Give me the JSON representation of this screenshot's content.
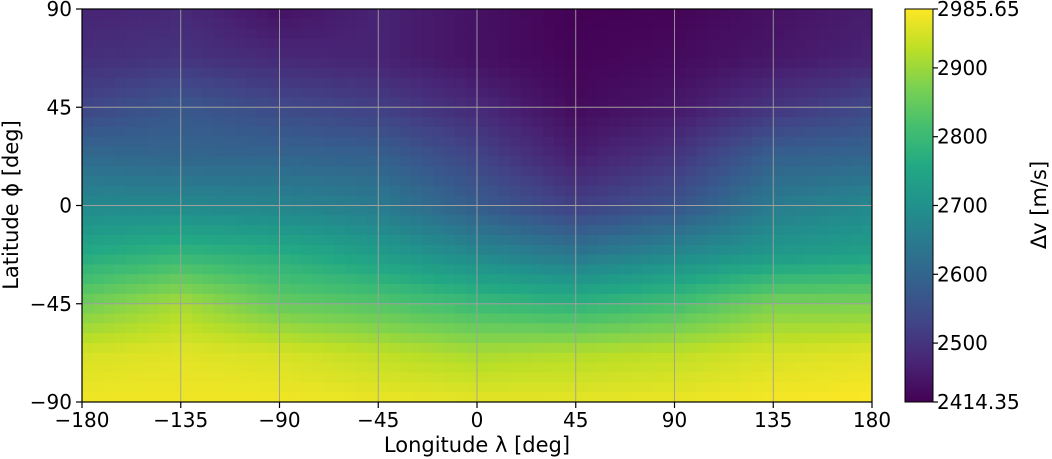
{
  "chart_data": {
    "type": "heatmap",
    "title": "",
    "xlabel": "Longitude λ [deg]",
    "ylabel": "Latitude ϕ [deg]",
    "colorbar_label": "Δv [m/s]",
    "xlim": [
      -180,
      180
    ],
    "ylim": [
      -90,
      90
    ],
    "xticks": [
      -180,
      -135,
      -90,
      -45,
      0,
      45,
      90,
      135,
      180
    ],
    "xtick_labels": [
      "−180",
      "−135",
      "−90",
      "−45",
      "0",
      "45",
      "90",
      "135",
      "180"
    ],
    "yticks": [
      -90,
      -45,
      0,
      45,
      90
    ],
    "ytick_labels": [
      "−90",
      "−45",
      "0",
      "45",
      "90"
    ],
    "grid": true,
    "colormap": "viridis",
    "vmin": 2414.35,
    "vmax": 2985.65,
    "colorbar_ticks": [
      2414.35,
      2500,
      2600,
      2700,
      2800,
      2900,
      2985.65
    ],
    "colorbar_tick_labels": [
      "2414.35",
      "2500",
      "2600",
      "2700",
      "2800",
      "2900",
      "2985.65"
    ],
    "x": [
      -180,
      -135,
      -90,
      -45,
      0,
      45,
      90,
      135,
      180
    ],
    "y": [
      90,
      67.5,
      45,
      22.5,
      0,
      -22.5,
      -45,
      -67.5,
      -90
    ],
    "z": [
      [
        2470,
        2480,
        2440,
        2470,
        2440,
        2415,
        2420,
        2440,
        2460
      ],
      [
        2490,
        2500,
        2480,
        2470,
        2440,
        2420,
        2430,
        2450,
        2470
      ],
      [
        2530,
        2570,
        2540,
        2520,
        2480,
        2430,
        2450,
        2500,
        2540
      ],
      [
        2610,
        2600,
        2600,
        2590,
        2530,
        2460,
        2500,
        2590,
        2600
      ],
      [
        2680,
        2680,
        2670,
        2650,
        2580,
        2520,
        2560,
        2650,
        2680
      ],
      [
        2760,
        2790,
        2770,
        2730,
        2680,
        2640,
        2680,
        2720,
        2740
      ],
      [
        2860,
        2910,
        2850,
        2830,
        2800,
        2780,
        2810,
        2870,
        2870
      ],
      [
        2950,
        2960,
        2950,
        2930,
        2910,
        2920,
        2930,
        2950,
        2960
      ],
      [
        2975,
        2975,
        2975,
        2970,
        2965,
        2965,
        2970,
        2980,
        2985
      ]
    ]
  }
}
